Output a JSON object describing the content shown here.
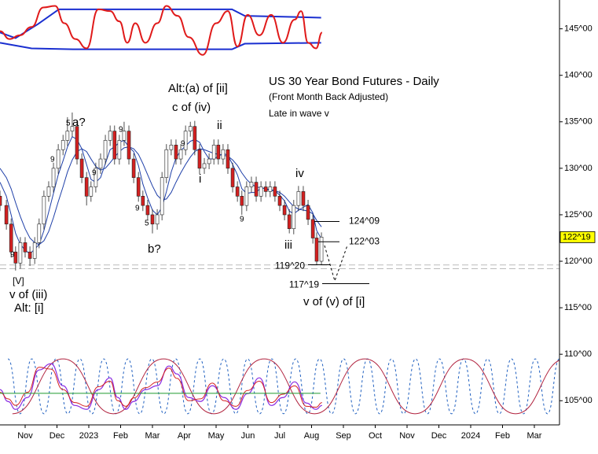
{
  "chart_data": {
    "type": "candlestick",
    "xlim": [
      -0.79,
      16.79
    ],
    "ylim": [
      102.4,
      148.1
    ],
    "xticks": [
      {
        "value": 0,
        "label": "Nov"
      },
      {
        "value": 1,
        "label": "Dec"
      },
      {
        "value": 2,
        "label": "2023"
      },
      {
        "value": 3,
        "label": "Feb"
      },
      {
        "value": 4,
        "label": "Mar"
      },
      {
        "value": 5,
        "label": "Apr"
      },
      {
        "value": 6,
        "label": "May"
      },
      {
        "value": 7,
        "label": "Jun"
      },
      {
        "value": 8,
        "label": "Jul"
      },
      {
        "value": 9,
        "label": "Aug"
      },
      {
        "value": 10,
        "label": "Sep"
      },
      {
        "value": 11,
        "label": "Oct"
      },
      {
        "value": 12,
        "label": "Nov"
      },
      {
        "value": 13,
        "label": "Dec"
      },
      {
        "value": 14,
        "label": "2024"
      },
      {
        "value": 15,
        "label": "Feb"
      },
      {
        "value": 16,
        "label": "Mar"
      }
    ],
    "yticks": [
      {
        "value": 105,
        "label": "105^00"
      },
      {
        "value": 110,
        "label": "110^00"
      },
      {
        "value": 115,
        "label": "115^00"
      },
      {
        "value": 120,
        "label": "120^00"
      },
      {
        "value": 125,
        "label": "125^00"
      },
      {
        "value": 130,
        "label": "130^00"
      },
      {
        "value": 135,
        "label": "135^00"
      },
      {
        "value": 140,
        "label": "140^00"
      },
      {
        "value": 145,
        "label": "145^00"
      }
    ],
    "up_color": "#ffffff",
    "down_color": "#d42020",
    "candles": [
      [
        -0.79,
        127,
        127.6,
        125.4,
        126
      ],
      [
        -0.59,
        126,
        126.6,
        123.4,
        124
      ],
      [
        -0.44,
        124,
        124.6,
        120.4,
        121
      ],
      [
        -0.3,
        121,
        121.6,
        119,
        119.8
      ],
      [
        -0.15,
        119.8,
        122.6,
        119.2,
        122
      ],
      [
        0.0,
        122,
        122.6,
        120.4,
        121
      ],
      [
        0.15,
        121,
        121.6,
        119.5,
        120.3
      ],
      [
        0.3,
        120.3,
        122.6,
        119.7,
        122
      ],
      [
        0.44,
        122,
        124.6,
        121.4,
        124
      ],
      [
        0.59,
        124,
        127.6,
        123.4,
        127
      ],
      [
        0.74,
        127,
        128.6,
        126.4,
        128
      ],
      [
        0.89,
        128,
        130.6,
        127.4,
        130
      ],
      [
        1.04,
        130,
        132.6,
        129.4,
        132
      ],
      [
        1.19,
        132,
        133.6,
        131.4,
        133
      ],
      [
        1.33,
        133,
        135.5,
        132.4,
        134
      ],
      [
        1.48,
        134,
        136,
        133.4,
        134.5
      ],
      [
        1.63,
        134.5,
        135.1,
        130.4,
        131
      ],
      [
        1.78,
        131,
        131.6,
        128.4,
        129
      ],
      [
        1.93,
        129,
        129.6,
        126,
        127
      ],
      [
        2.07,
        127,
        128.6,
        126.4,
        128
      ],
      [
        2.22,
        128,
        130.6,
        127.4,
        130
      ],
      [
        2.37,
        130,
        131.6,
        129.4,
        131
      ],
      [
        2.52,
        131,
        133.6,
        130.4,
        133
      ],
      [
        2.67,
        133,
        134.6,
        132.4,
        134
      ],
      [
        2.81,
        134,
        134.6,
        130.4,
        131
      ],
      [
        2.96,
        131,
        133.6,
        130.4,
        133
      ],
      [
        3.11,
        133,
        135,
        132.4,
        134
      ],
      [
        3.26,
        134,
        134.6,
        130.4,
        131
      ],
      [
        3.41,
        131,
        131.6,
        128.4,
        129
      ],
      [
        3.56,
        129,
        129.6,
        126.4,
        127
      ],
      [
        3.7,
        127,
        127.6,
        125.4,
        126
      ],
      [
        3.85,
        126,
        126.6,
        124.4,
        125
      ],
      [
        4.0,
        125,
        125.6,
        123,
        124
      ],
      [
        4.15,
        124,
        125.6,
        123.4,
        125
      ],
      [
        4.3,
        125,
        129.6,
        124.4,
        129
      ],
      [
        4.44,
        129,
        132.6,
        128.4,
        132
      ],
      [
        4.59,
        132,
        133.1,
        131.4,
        132.5
      ],
      [
        4.74,
        132.5,
        133.1,
        130.4,
        131
      ],
      [
        4.89,
        131,
        132.6,
        130.4,
        132
      ],
      [
        5.04,
        132,
        134.6,
        131.4,
        134
      ],
      [
        5.19,
        134,
        135,
        133.4,
        134.5
      ],
      [
        5.33,
        134.5,
        135.1,
        131.4,
        132
      ],
      [
        5.48,
        132,
        132.6,
        129.4,
        130
      ],
      [
        5.63,
        130,
        131.1,
        129.4,
        130.5
      ],
      [
        5.78,
        130.5,
        131.6,
        129.9,
        131
      ],
      [
        5.93,
        131,
        133.1,
        130.4,
        132.5
      ],
      [
        6.07,
        132.5,
        133.1,
        130.4,
        131
      ],
      [
        6.22,
        131,
        132.6,
        130.4,
        132
      ],
      [
        6.37,
        132,
        132.6,
        129.4,
        130
      ],
      [
        6.52,
        130,
        130.6,
        127.4,
        128
      ],
      [
        6.67,
        128,
        128.6,
        126.4,
        127
      ],
      [
        6.81,
        127,
        127.6,
        125,
        126
      ],
      [
        6.96,
        126,
        128.6,
        125.4,
        128
      ],
      [
        7.11,
        128,
        129.1,
        127.4,
        128.5
      ],
      [
        7.26,
        128.5,
        129.1,
        126.4,
        127
      ],
      [
        7.41,
        127,
        128.6,
        126.4,
        128
      ],
      [
        7.56,
        128,
        128.6,
        126.9,
        127.5
      ],
      [
        7.7,
        127.5,
        128.6,
        126.9,
        128
      ],
      [
        7.85,
        128,
        128.6,
        126.4,
        127
      ],
      [
        8.0,
        127,
        127.6,
        125.4,
        126
      ],
      [
        8.15,
        126,
        126.6,
        124.4,
        125
      ],
      [
        8.3,
        125,
        125.6,
        123,
        123.5
      ],
      [
        8.44,
        123.5,
        126.6,
        122.9,
        126
      ],
      [
        8.59,
        126,
        128.1,
        125.4,
        127.5
      ],
      [
        8.74,
        127.5,
        128.1,
        125.4,
        126
      ],
      [
        8.89,
        126,
        126.6,
        123.9,
        124.5
      ],
      [
        9.04,
        124.5,
        125.1,
        121.9,
        122.5
      ],
      [
        9.16,
        122.5,
        123.1,
        119.6,
        120
      ],
      [
        9.31,
        120,
        123.1,
        119.6,
        122.6
      ]
    ],
    "series": [
      {
        "color": "#1e3fa8",
        "width": 1,
        "values": [
          128.5,
          127,
          125,
          123,
          121.8,
          121.2,
          120.8,
          121.3,
          121.8,
          123.3,
          125.3,
          127.3,
          129.3,
          130.8,
          132.3,
          133.4,
          133.1,
          132.1,
          130.4,
          128.8,
          128.5,
          129,
          130.5,
          132,
          132.3,
          132.8,
          133,
          132.3,
          131.8,
          130.3,
          128.3,
          126.8,
          125.5,
          125,
          125.8,
          127.5,
          129.6,
          131.1,
          131.9,
          132.4,
          132.9,
          133.1,
          132.8,
          131.8,
          131,
          131,
          131.3,
          131.6,
          131.4,
          130.4,
          129.3,
          127.8,
          127.3,
          127.4,
          127.4,
          127.9,
          127.8,
          127.6,
          127.6,
          127.1,
          126.5,
          125.4,
          125.1,
          125.5,
          125.8,
          126.1,
          125.2,
          123.3,
          122.4
        ]
      },
      {
        "color": "#1e3fa8",
        "width": 1,
        "values": [
          130,
          129,
          127.8,
          126.3,
          124.8,
          123.5,
          122.5,
          122,
          121.8,
          122.2,
          123.2,
          124.7,
          126.4,
          128,
          129.6,
          130.9,
          131.8,
          132.1,
          131.8,
          131,
          130.2,
          129.8,
          130,
          130.6,
          131.2,
          131.8,
          132.2,
          132.3,
          132.1,
          131.5,
          130.5,
          129.3,
          128.1,
          127.1,
          126.6,
          126.7,
          127.4,
          128.5,
          129.5,
          130.4,
          131.2,
          131.8,
          132.1,
          132,
          131.8,
          131.6,
          131.5,
          131.4,
          131.3,
          130.9,
          130.3,
          129.5,
          128.8,
          128.3,
          128,
          127.9,
          127.8,
          127.7,
          127.6,
          127.4,
          127,
          126.4,
          125.9,
          125.6,
          125.5,
          125.4,
          125.1,
          124.4,
          123.7
        ]
      },
      {
        "color": "#1a2fd0",
        "width": 2,
        "x": [
          -0.79,
          -0.3,
          0.4,
          1.06,
          6.5,
          6.9,
          9.3
        ],
        "values": [
          144.6,
          144.0,
          145.5,
          147.1,
          147.1,
          146.4,
          146.2
        ]
      },
      {
        "color": "#1a2fd0",
        "width": 2,
        "x": [
          -0.79,
          0.2,
          1.5,
          6.5,
          6.9,
          9.3
        ],
        "values": [
          143.5,
          142.9,
          142.8,
          142.8,
          143.4,
          143.5
        ]
      },
      {
        "color": "#e01a1a",
        "width": 2,
        "smooth": true,
        "x": [
          -0.79,
          -0.49,
          -0.17,
          0.2,
          0.57,
          0.94,
          1.23,
          1.58,
          1.93,
          2.3,
          2.67,
          2.96,
          3.21,
          3.46,
          3.78,
          4.15,
          4.44,
          4.79,
          5.14,
          5.58,
          6.0,
          6.37,
          6.67,
          6.99,
          7.36,
          7.73,
          8.1,
          8.47,
          8.67,
          8.89,
          9.14,
          9.33
        ],
        "values": [
          144.75,
          143.9,
          144.3,
          145.2,
          147.3,
          147.46,
          145.6,
          143.9,
          142.9,
          147.1,
          146.9,
          145.8,
          143.5,
          145.6,
          143.5,
          145.6,
          147.46,
          146.4,
          144.1,
          142.2,
          145.6,
          146.9,
          143.1,
          146.5,
          144.3,
          146.5,
          143.5,
          146.0,
          146.9,
          143.5,
          142.9,
          144.6
        ]
      },
      {
        "color": "#2060c0",
        "width": 1,
        "dash": true,
        "smooth": true,
        "x": [
          -0.54,
          -0.16,
          0.21,
          0.59,
          0.97,
          1.34,
          1.72,
          2.1,
          2.47,
          2.85,
          3.23,
          3.6,
          3.98,
          4.36,
          4.73,
          5.11,
          5.49,
          5.86,
          6.24,
          6.62,
          6.99,
          7.37,
          7.75,
          8.12,
          8.5,
          8.88,
          9.25,
          9.63,
          10.01,
          10.38,
          10.76,
          11.14,
          11.51,
          11.89,
          12.27,
          12.64,
          13.02,
          13.4,
          13.77,
          14.15,
          14.53,
          14.9,
          15.28,
          15.66,
          16.03,
          16.41,
          16.79
        ],
        "values": [
          109.5,
          103.6,
          109.5,
          103.6,
          109.5,
          103.6,
          109.5,
          103.6,
          109.5,
          103.6,
          109.5,
          103.6,
          109.5,
          103.6,
          109.5,
          103.6,
          109.5,
          103.6,
          109.5,
          103.6,
          109.5,
          103.6,
          109.5,
          103.6,
          109.5,
          103.6,
          109.5,
          103.6,
          109.5,
          103.6,
          109.5,
          103.6,
          109.5,
          103.6,
          109.5,
          103.6,
          109.5,
          103.6,
          109.5,
          103.6,
          109.5,
          103.6,
          109.5,
          103.6,
          109.5,
          103.6,
          109.5
        ]
      },
      {
        "color": "#b0203c",
        "width": 1,
        "smooth": true,
        "x": [
          -0.4,
          1.19,
          2.77,
          4.35,
          5.93,
          7.51,
          9.09,
          10.67,
          12.25,
          13.83,
          15.41,
          16.99
        ],
        "values": [
          103.6,
          109.5,
          103.6,
          109.5,
          103.6,
          109.5,
          103.6,
          109.5,
          103.6,
          109.5,
          103.6,
          109.5
        ]
      },
      {
        "color": "#8a2be2",
        "width": 1.2,
        "smooth": true,
        "x": [
          -0.79,
          -0.54,
          -0.3,
          0.07,
          0.44,
          0.81,
          1.19,
          1.56,
          1.93,
          2.3,
          2.67,
          2.91,
          3.16,
          3.41,
          3.78,
          4.15,
          4.52,
          4.77,
          5.14,
          5.51,
          5.88,
          6.25,
          6.62,
          6.99,
          7.36,
          7.73,
          8.1,
          8.47,
          8.84,
          9.14,
          9.33
        ],
        "values": [
          106.19,
          104.92,
          104.07,
          105.34,
          108.31,
          108.98,
          106.61,
          104.49,
          104.07,
          106.19,
          107.46,
          105.34,
          104.07,
          104.92,
          106.19,
          106.61,
          108.73,
          107.88,
          105.34,
          104.92,
          106.61,
          105.34,
          104.07,
          105.76,
          107.46,
          104.49,
          105.34,
          107.03,
          104.75,
          104.07,
          104.49
        ]
      },
      {
        "color": "#d42020",
        "width": 1,
        "smooth": true,
        "x": [
          -0.79,
          -0.54,
          -0.3,
          0.07,
          0.44,
          0.81,
          1.19,
          1.56,
          1.93,
          2.3,
          2.67,
          2.91,
          3.16,
          3.41,
          3.78,
          4.15,
          4.52,
          4.77,
          5.14,
          5.51,
          5.88,
          6.25,
          6.62,
          6.99,
          7.36,
          7.73,
          8.1,
          8.47,
          8.84,
          9.14,
          9.33
        ],
        "values": [
          105.9,
          105.2,
          104.5,
          105.9,
          108.6,
          108.4,
          106.2,
          104.8,
          104.4,
          106.5,
          107.1,
          105.0,
          104.4,
          105.3,
          106.4,
          107.0,
          108.5,
          107.4,
          105.0,
          105.2,
          106.9,
          105.0,
          104.4,
          106.1,
          107.1,
          104.8,
          105.7,
          106.6,
          104.4,
          104.3,
          104.8
        ]
      },
      {
        "color": "#1f9a2e",
        "width": 1,
        "x": [
          -0.79,
          9.28
        ],
        "values": [
          105.8,
          105.8
        ]
      }
    ],
    "ref_lines": [
      119.6,
      119.2
    ],
    "levels": [
      {
        "value": 124.28125,
        "label": "124^09"
      },
      {
        "value": 122.09375,
        "label": "122^03"
      },
      {
        "value": 119.625,
        "label": "119^20"
      },
      {
        "value": 117.59375,
        "label": "117^19"
      }
    ],
    "last": {
      "value": 122.59375,
      "label": "122^19"
    },
    "annotations": [
      "US 30 Year Bond Futures - Daily",
      "(Front Month Back Adjusted)",
      "Late in wave v",
      "Alt:(a) of [ii]",
      "c of (iv)",
      "ii",
      "i",
      "iv",
      "iii",
      "a?",
      "b?",
      "[V]",
      "v of (iii)",
      "Alt: [i]",
      "v of (v) of [i]"
    ],
    "counts": [
      {
        "text": "9",
        "color": "#d42020"
      },
      {
        "text": "9",
        "color": "#1e3fa8"
      },
      {
        "text": "5",
        "color": "#b8860b"
      },
      {
        "text": "9",
        "color": "#d42020"
      },
      {
        "text": "9",
        "color": "#1e3fa8"
      },
      {
        "text": "5",
        "color": "#b8860b"
      },
      {
        "text": "9",
        "color": "#d42020"
      },
      {
        "text": "9",
        "color": "#1e3fa8"
      },
      {
        "text": "9",
        "color": "#1e3fa8"
      }
    ]
  }
}
